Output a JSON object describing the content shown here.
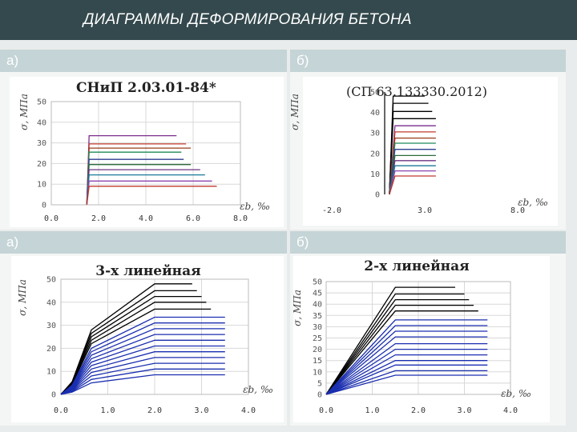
{
  "slide": {
    "title": "ДИАГРАММЫ ДЕФОРМИРОВАНИЯ БЕТОНА",
    "labels": [
      "а)",
      "б)",
      "а)",
      "б)"
    ]
  },
  "chart_data": [
    {
      "type": "line",
      "title": "СНиП 2.03.01-84*",
      "ylabel": "σ, МПа",
      "xlabel": "εb, ‰",
      "x_ticks": [
        "0.0",
        "2.0",
        "4.0",
        "6.0",
        "8.0"
      ],
      "y_ticks": [
        "0",
        "10",
        "20",
        "30",
        "40",
        "50"
      ],
      "xlim": [
        0,
        8
      ],
      "ylim": [
        0,
        50
      ],
      "series": [
        {
          "color": "#7b2d8e",
          "x": [
            1.5,
            1.6,
            5.3
          ],
          "y": [
            0,
            33.5,
            33.5
          ]
        },
        {
          "color": "#c0392b",
          "x": [
            1.5,
            1.6,
            5.7
          ],
          "y": [
            0,
            29.5,
            29.5
          ]
        },
        {
          "color": "#9a3c1a",
          "x": [
            1.5,
            1.6,
            5.9
          ],
          "y": [
            0,
            27.5,
            27.5
          ]
        },
        {
          "color": "#1f8a5a",
          "x": [
            1.5,
            1.6,
            5.5
          ],
          "y": [
            0,
            25.5,
            25.5
          ]
        },
        {
          "color": "#2c3e90",
          "x": [
            1.5,
            1.6,
            5.6
          ],
          "y": [
            0,
            22,
            22
          ]
        },
        {
          "color": "#2e6b3a",
          "x": [
            1.5,
            1.6,
            5.9
          ],
          "y": [
            0,
            19.5,
            19.5
          ]
        },
        {
          "color": "#6c3483",
          "x": [
            1.5,
            1.6,
            6.3
          ],
          "y": [
            0,
            17,
            17
          ]
        },
        {
          "color": "#1a7a9a",
          "x": [
            1.5,
            1.6,
            6.5
          ],
          "y": [
            0,
            14.5,
            14.5
          ]
        },
        {
          "color": "#8e44ad",
          "x": [
            1.5,
            1.6,
            6.8
          ],
          "y": [
            0,
            11.5,
            11.5
          ]
        },
        {
          "color": "#c0392b",
          "x": [
            1.5,
            1.6,
            7.0
          ],
          "y": [
            0,
            9,
            9
          ]
        }
      ]
    },
    {
      "type": "line",
      "title": "(СП 63.133330.2012)",
      "ylabel": "σ, МПа",
      "xlabel": "εb, ‰",
      "x_ticks": [
        "-2.0",
        "3.0",
        "8.0"
      ],
      "y_ticks": [
        "0",
        "10",
        "20",
        "30",
        "40",
        "50"
      ],
      "xlim": [
        -2,
        8
      ],
      "ylim": [
        0,
        50
      ],
      "series": [
        {
          "color": "#000000",
          "x": [
            1.1,
            1.3,
            3.0
          ],
          "y": [
            0,
            48,
            48
          ]
        },
        {
          "color": "#000000",
          "x": [
            1.1,
            1.3,
            3.2
          ],
          "y": [
            0,
            44.5,
            44.5
          ]
        },
        {
          "color": "#000000",
          "x": [
            1.1,
            1.3,
            3.4
          ],
          "y": [
            0,
            40.5,
            40.5
          ]
        },
        {
          "color": "#000000",
          "x": [
            1.1,
            1.3,
            3.6
          ],
          "y": [
            0,
            37,
            37
          ]
        },
        {
          "color": "#7b2d8e",
          "x": [
            1.1,
            1.4,
            3.6
          ],
          "y": [
            0,
            33.5,
            33.5
          ]
        },
        {
          "color": "#c0392b",
          "x": [
            1.1,
            1.4,
            3.6
          ],
          "y": [
            0,
            30.5,
            30.5
          ]
        },
        {
          "color": "#9a3c1a",
          "x": [
            1.1,
            1.4,
            3.6
          ],
          "y": [
            0,
            27.5,
            27.5
          ]
        },
        {
          "color": "#1f8a5a",
          "x": [
            1.1,
            1.4,
            3.6
          ],
          "y": [
            0,
            25,
            25
          ]
        },
        {
          "color": "#2c3e90",
          "x": [
            1.1,
            1.4,
            3.6
          ],
          "y": [
            0,
            22,
            22
          ]
        },
        {
          "color": "#2e6b3a",
          "x": [
            1.1,
            1.4,
            3.6
          ],
          "y": [
            0,
            19,
            19
          ]
        },
        {
          "color": "#6c3483",
          "x": [
            1.1,
            1.4,
            3.6
          ],
          "y": [
            0,
            16.5,
            16.5
          ]
        },
        {
          "color": "#1a7a9a",
          "x": [
            1.1,
            1.4,
            3.6
          ],
          "y": [
            0,
            14,
            14
          ]
        },
        {
          "color": "#8e44ad",
          "x": [
            1.1,
            1.4,
            3.6
          ],
          "y": [
            0,
            11.5,
            11.5
          ]
        },
        {
          "color": "#c0392b",
          "x": [
            1.1,
            1.4,
            3.6
          ],
          "y": [
            0,
            9,
            9
          ]
        }
      ]
    },
    {
      "type": "line",
      "title": "3-х линейная",
      "ylabel": "σ, МПа",
      "xlabel": "εb, ‰",
      "x_ticks": [
        "0.0",
        "1.0",
        "2.0",
        "3.0",
        "4.0"
      ],
      "y_ticks": [
        "0",
        "10",
        "20",
        "30",
        "40",
        "50"
      ],
      "xlim": [
        0,
        4
      ],
      "ylim": [
        0,
        50
      ],
      "series": [
        {
          "color": "#000000",
          "x": [
            0,
            0.24,
            0.65,
            2.0,
            2.8
          ],
          "y": [
            0,
            5.5,
            28,
            48,
            48
          ]
        },
        {
          "color": "#000000",
          "x": [
            0,
            0.24,
            0.65,
            2.0,
            2.9
          ],
          "y": [
            0,
            5.2,
            26.5,
            45,
            45
          ]
        },
        {
          "color": "#000000",
          "x": [
            0,
            0.24,
            0.65,
            2.0,
            3.0
          ],
          "y": [
            0,
            5,
            25,
            42.5,
            42.5
          ]
        },
        {
          "color": "#000000",
          "x": [
            0,
            0.24,
            0.65,
            2.0,
            3.1
          ],
          "y": [
            0,
            4.7,
            23.5,
            40,
            40
          ]
        },
        {
          "color": "#000000",
          "x": [
            0,
            0.24,
            0.65,
            2.0,
            3.2
          ],
          "y": [
            0,
            4.4,
            22,
            37,
            37
          ]
        },
        {
          "color": "#1a2eb0",
          "x": [
            0,
            0.24,
            0.65,
            2.0,
            3.5
          ],
          "y": [
            0,
            4,
            20,
            33.5,
            33.5
          ]
        },
        {
          "color": "#1a2eb0",
          "x": [
            0,
            0.24,
            0.65,
            2.0,
            3.5
          ],
          "y": [
            0,
            3.7,
            18.5,
            31,
            31
          ]
        },
        {
          "color": "#1a2eb0",
          "x": [
            0,
            0.24,
            0.65,
            2.0,
            3.5
          ],
          "y": [
            0,
            3.4,
            17,
            28.5,
            28.5
          ]
        },
        {
          "color": "#1a2eb0",
          "x": [
            0,
            0.24,
            0.65,
            2.0,
            3.5
          ],
          "y": [
            0,
            3.1,
            15.5,
            26,
            26
          ]
        },
        {
          "color": "#1a2eb0",
          "x": [
            0,
            0.24,
            0.65,
            2.0,
            3.5
          ],
          "y": [
            0,
            2.8,
            14,
            23.5,
            23.5
          ]
        },
        {
          "color": "#1a2eb0",
          "x": [
            0,
            0.24,
            0.65,
            2.0,
            3.5
          ],
          "y": [
            0,
            2.5,
            12.5,
            21,
            21
          ]
        },
        {
          "color": "#1a2eb0",
          "x": [
            0,
            0.24,
            0.65,
            2.0,
            3.5
          ],
          "y": [
            0,
            2.2,
            11,
            18.5,
            18.5
          ]
        },
        {
          "color": "#1a2eb0",
          "x": [
            0,
            0.24,
            0.65,
            2.0,
            3.5
          ],
          "y": [
            0,
            1.9,
            9.5,
            16,
            16
          ]
        },
        {
          "color": "#1a2eb0",
          "x": [
            0,
            0.24,
            0.65,
            2.0,
            3.5
          ],
          "y": [
            0,
            1.6,
            8,
            13.5,
            13.5
          ]
        },
        {
          "color": "#1a2eb0",
          "x": [
            0,
            0.24,
            0.65,
            2.0,
            3.5
          ],
          "y": [
            0,
            1.3,
            6.5,
            11,
            11
          ]
        },
        {
          "color": "#1a2eb0",
          "x": [
            0,
            0.24,
            0.65,
            2.0,
            3.5
          ],
          "y": [
            0,
            1.0,
            5,
            8.5,
            8.5
          ]
        }
      ]
    },
    {
      "type": "line",
      "title": "2-х линейная",
      "ylabel": "σ, МПа",
      "xlabel": "εb, ‰",
      "x_ticks": [
        "0.0",
        "1.0",
        "2.0",
        "3.0",
        "4.0"
      ],
      "y_ticks": [
        "0",
        "5",
        "10",
        "15",
        "20",
        "25",
        "30",
        "35",
        "40",
        "45",
        "50"
      ],
      "xlim": [
        0,
        4
      ],
      "ylim": [
        0,
        50
      ],
      "series": [
        {
          "color": "#000000",
          "x": [
            0,
            1.5,
            2.8
          ],
          "y": [
            0,
            47.5,
            47.5
          ]
        },
        {
          "color": "#000000",
          "x": [
            0,
            1.5,
            3.0
          ],
          "y": [
            0,
            44.5,
            44.5
          ]
        },
        {
          "color": "#000000",
          "x": [
            0,
            1.5,
            3.1
          ],
          "y": [
            0,
            42,
            42
          ]
        },
        {
          "color": "#000000",
          "x": [
            0,
            1.5,
            3.2
          ],
          "y": [
            0,
            39.5,
            39.5
          ]
        },
        {
          "color": "#000000",
          "x": [
            0,
            1.5,
            3.3
          ],
          "y": [
            0,
            37,
            37
          ]
        },
        {
          "color": "#1a2eb0",
          "x": [
            0,
            1.5,
            3.5
          ],
          "y": [
            0,
            33,
            33
          ]
        },
        {
          "color": "#1a2eb0",
          "x": [
            0,
            1.5,
            3.5
          ],
          "y": [
            0,
            30.5,
            30.5
          ]
        },
        {
          "color": "#1a2eb0",
          "x": [
            0,
            1.5,
            3.5
          ],
          "y": [
            0,
            28,
            28
          ]
        },
        {
          "color": "#1a2eb0",
          "x": [
            0,
            1.5,
            3.5
          ],
          "y": [
            0,
            25.5,
            25.5
          ]
        },
        {
          "color": "#1a2eb0",
          "x": [
            0,
            1.5,
            3.5
          ],
          "y": [
            0,
            22.5,
            22.5
          ]
        },
        {
          "color": "#1a2eb0",
          "x": [
            0,
            1.5,
            3.5
          ],
          "y": [
            0,
            20,
            20
          ]
        },
        {
          "color": "#1a2eb0",
          "x": [
            0,
            1.5,
            3.5
          ],
          "y": [
            0,
            17.5,
            17.5
          ]
        },
        {
          "color": "#1a2eb0",
          "x": [
            0,
            1.5,
            3.5
          ],
          "y": [
            0,
            15,
            15
          ]
        },
        {
          "color": "#1a2eb0",
          "x": [
            0,
            1.5,
            3.5
          ],
          "y": [
            0,
            13,
            13
          ]
        },
        {
          "color": "#1a2eb0",
          "x": [
            0,
            1.5,
            3.5
          ],
          "y": [
            0,
            10.5,
            10.5
          ]
        },
        {
          "color": "#1a2eb0",
          "x": [
            0,
            1.5,
            3.5
          ],
          "y": [
            0,
            8.5,
            8.5
          ]
        }
      ]
    }
  ]
}
